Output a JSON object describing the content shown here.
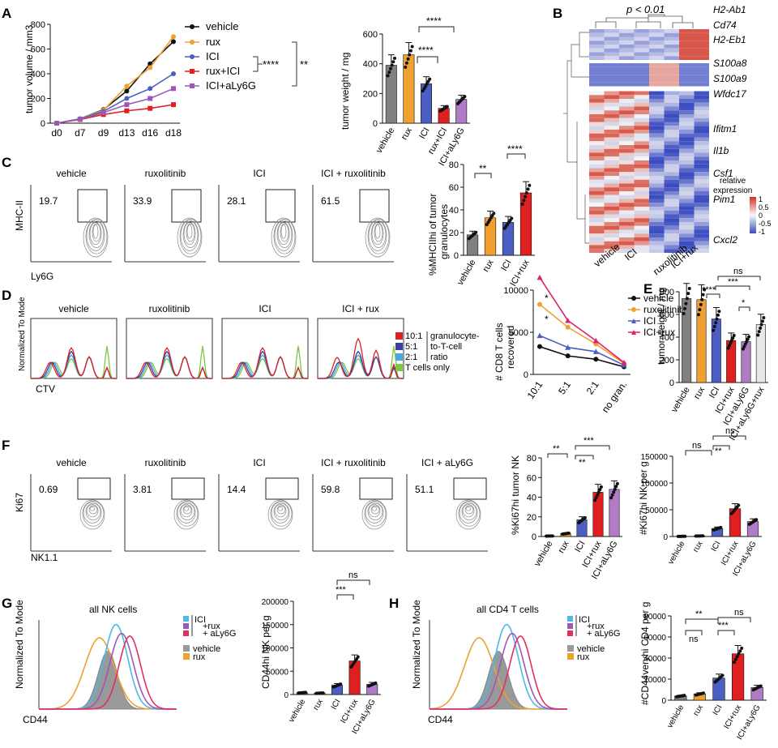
{
  "colors": {
    "vehicle": "#111111",
    "rux": "#f0a030",
    "ICI": "#4a5fc1",
    "ruxICI": "#e02020",
    "aly6g": "#9b59b6",
    "grey": "#808080",
    "heatHigh": "#d7301f",
    "heatLow": "#3b4cc0"
  },
  "panels": {
    "A": {
      "letter": "A",
      "line_ylabel": "tumor volume / mm3",
      "bar_ylabel": "tumor weight / mg",
      "sig1": "****",
      "sig2": "**",
      "sig3": "****",
      "sig4": "****"
    },
    "B": {
      "letter": "B",
      "pvalue": "p < 0.01",
      "genes": [
        "H2-Ab1",
        "Cd74",
        "H2-Eb1",
        "S100a8",
        "S100a9",
        "Wfdc17",
        "Ifitm1",
        "Il1b",
        "Csf1",
        "Pim1",
        "Cxcl2"
      ],
      "columns": [
        "vehicle",
        "ICI",
        "ruxolitinib",
        "ICI+rux"
      ],
      "legend_title1": "relative",
      "legend_title2": "expression",
      "legend_ticks": [
        "1",
        "0.5",
        "0",
        "-0.5",
        "-1"
      ]
    },
    "C": {
      "letter": "C",
      "groups": [
        "vehicle",
        "ruxolitinib",
        "ICI",
        "ICI + ruxolitinib"
      ],
      "gate_values": [
        "19.7",
        "33.9",
        "28.1",
        "61.5"
      ],
      "yaxis": "MHC-II",
      "xaxis": "Ly6G",
      "bar_ylabel1": "%MHCIIhi of tumor",
      "bar_ylabel2": "granulocytes",
      "sig1": "**",
      "sig2": "****"
    },
    "D": {
      "letter": "D",
      "groups": [
        "vehicle",
        "ruxolitinib",
        "ICI",
        "ICI + rux"
      ],
      "yaxis": "Normalized To Mode",
      "xaxis": "CTV",
      "legend": [
        "10:1",
        "5:1",
        "2:1",
        "T cells only"
      ],
      "legend_desc": [
        "granulocyte-",
        "to-T-cell",
        "ratio"
      ],
      "line_ylabel1": "# CD8  T cells",
      "line_ylabel2": "recovered",
      "star": "*"
    },
    "E": {
      "letter": "E",
      "ylabel": "tumor weight / mg",
      "sig": [
        "ns",
        "***",
        "****",
        "*"
      ]
    },
    "F": {
      "letter": "F",
      "groups": [
        "vehicle",
        "ruxolitinib",
        "ICI",
        "ICI + ruxolitinib",
        "ICI + aLy6G"
      ],
      "gate_values": [
        "0.69",
        "3.81",
        "14.4",
        "59.8",
        "51.1"
      ],
      "yaxis": "Ki67",
      "xaxis": "NK1.1",
      "bar1_ylabel": "%Ki67hi tumor NK",
      "bar2_ylabel": "#Ki67hi NK per g",
      "sig1": [
        "**",
        "**",
        "***"
      ],
      "sig2": [
        "ns",
        "**",
        "ns"
      ]
    },
    "G": {
      "letter": "G",
      "title": "all NK cells",
      "yaxis": "Normalized To Mode",
      "xaxis": "CD44",
      "legend": [
        "ICI",
        "+rux",
        "+ aLy6G",
        "vehicle",
        "rux"
      ],
      "bar_ylabel": "CD44hi NK per g",
      "sig": [
        "***",
        "ns"
      ]
    },
    "H": {
      "letter": "H",
      "title": "all CD4 T cells",
      "yaxis": "Normalized To Mode",
      "xaxis": "CD44",
      "legend": [
        "ICI",
        "+rux",
        "+ aLy6G",
        "vehicle",
        "rux"
      ],
      "bar_ylabel": "#CD44veryhi CD4 per g",
      "sig": [
        "**",
        "ns",
        "***",
        "ns"
      ]
    }
  },
  "chart_data": [
    {
      "id": "A-line",
      "type": "line",
      "title": "",
      "xlabel": "",
      "ylabel": "tumor volume / mm3",
      "categories": [
        "d0",
        "d7",
        "d9",
        "d13",
        "d16",
        "d18"
      ],
      "ylim": [
        0,
        800
      ],
      "yticks": [
        0,
        200,
        400,
        600,
        800
      ],
      "series": [
        {
          "name": "vehicle",
          "values": [
            0,
            35,
            110,
            260,
            480,
            660
          ]
        },
        {
          "name": "rux",
          "values": [
            0,
            35,
            105,
            300,
            450,
            700
          ]
        },
        {
          "name": "ICI",
          "values": [
            0,
            35,
            95,
            200,
            280,
            400
          ]
        },
        {
          "name": "rux+ICI",
          "values": [
            0,
            30,
            70,
            100,
            120,
            150
          ]
        },
        {
          "name": "ICI+aLy6G",
          "values": [
            0,
            32,
            85,
            150,
            200,
            280
          ]
        }
      ]
    },
    {
      "id": "A-bar",
      "type": "bar",
      "ylabel": "tumor weight / mg",
      "categories": [
        "vehicle",
        "rux",
        "ICI",
        "rux+ICI",
        "ICI+aLy6G"
      ],
      "values": [
        390,
        460,
        265,
        100,
        160
      ],
      "ylim": [
        0,
        600
      ],
      "yticks": [
        0,
        200,
        400,
        600
      ]
    },
    {
      "id": "C-bar",
      "type": "bar",
      "ylabel": "%MHCIIhi of tumor granulocytes",
      "categories": [
        "vehicle",
        "rux",
        "ICI",
        "ICI+rux"
      ],
      "values": [
        18,
        33,
        29,
        55
      ],
      "ylim": [
        0,
        80
      ],
      "yticks": [
        0,
        20,
        40,
        60,
        80
      ]
    },
    {
      "id": "D-line",
      "type": "line",
      "ylabel": "# CD8 T cells recovered",
      "categories": [
        "10:1",
        "5:1",
        "2:1",
        "no gran."
      ],
      "ylim": [
        0,
        10000
      ],
      "yticks": [
        0,
        5000,
        10000
      ],
      "series": [
        {
          "name": "vehicle",
          "values": [
            3300,
            2200,
            1800,
            900
          ]
        },
        {
          "name": "ruxolitinib",
          "values": [
            8300,
            5600,
            3600,
            1300
          ]
        },
        {
          "name": "ICI",
          "values": [
            4600,
            3200,
            2700,
            1100
          ]
        },
        {
          "name": "ICI+rux",
          "values": [
            11500,
            6400,
            4000,
            1400
          ]
        }
      ]
    },
    {
      "id": "E-bar",
      "type": "bar",
      "ylabel": "tumor weight / mg",
      "categories": [
        "vehicle",
        "rux",
        "ICI",
        "ICI+rux",
        "ICI+aLy6G",
        "ICI+aLy6G+rux"
      ],
      "values": [
        740,
        730,
        560,
        370,
        360,
        510
      ],
      "ylim": [
        0,
        800
      ],
      "yticks": [
        0,
        200,
        400,
        600,
        800
      ]
    },
    {
      "id": "F-bar1",
      "type": "bar",
      "ylabel": "%Ki67hi tumor NK",
      "categories": [
        "vehicle",
        "rux",
        "ICI",
        "ICI+rux",
        "ICI+aLy6G"
      ],
      "values": [
        0.5,
        3,
        17,
        45,
        48
      ],
      "ylim": [
        0,
        80
      ],
      "yticks": [
        0,
        20,
        40,
        60,
        80
      ]
    },
    {
      "id": "F-bar2",
      "type": "bar",
      "ylabel": "#Ki67hi NK per g",
      "categories": [
        "vehicle",
        "rux",
        "ICI",
        "ICI+rux",
        "ICI+aLy6G"
      ],
      "values": [
        300,
        1000,
        15000,
        52000,
        28000
      ],
      "ylim": [
        0,
        150000
      ],
      "yticks": [
        0,
        50000,
        100000,
        150000
      ]
    },
    {
      "id": "G-bar",
      "type": "bar",
      "ylabel": "CD44hi NK per g",
      "categories": [
        "vehicle",
        "rux",
        "ICI",
        "ICI+rux",
        "ICI+aLy6G"
      ],
      "values": [
        4000,
        3000,
        20000,
        72000,
        22000
      ],
      "ylim": [
        0,
        200000
      ],
      "yticks": [
        0,
        50000,
        100000,
        150000,
        200000
      ]
    },
    {
      "id": "H-bar",
      "type": "bar",
      "ylabel": "#CD44veryhi CD4 per g",
      "categories": [
        "vehicle",
        "rux",
        "ICI",
        "ICI+rux",
        "ICI+aLy6G"
      ],
      "values": [
        4000,
        6000,
        21000,
        44000,
        12000
      ],
      "ylim": [
        0,
        80000
      ],
      "yticks": [
        0,
        20000,
        40000,
        60000,
        80000
      ]
    }
  ]
}
